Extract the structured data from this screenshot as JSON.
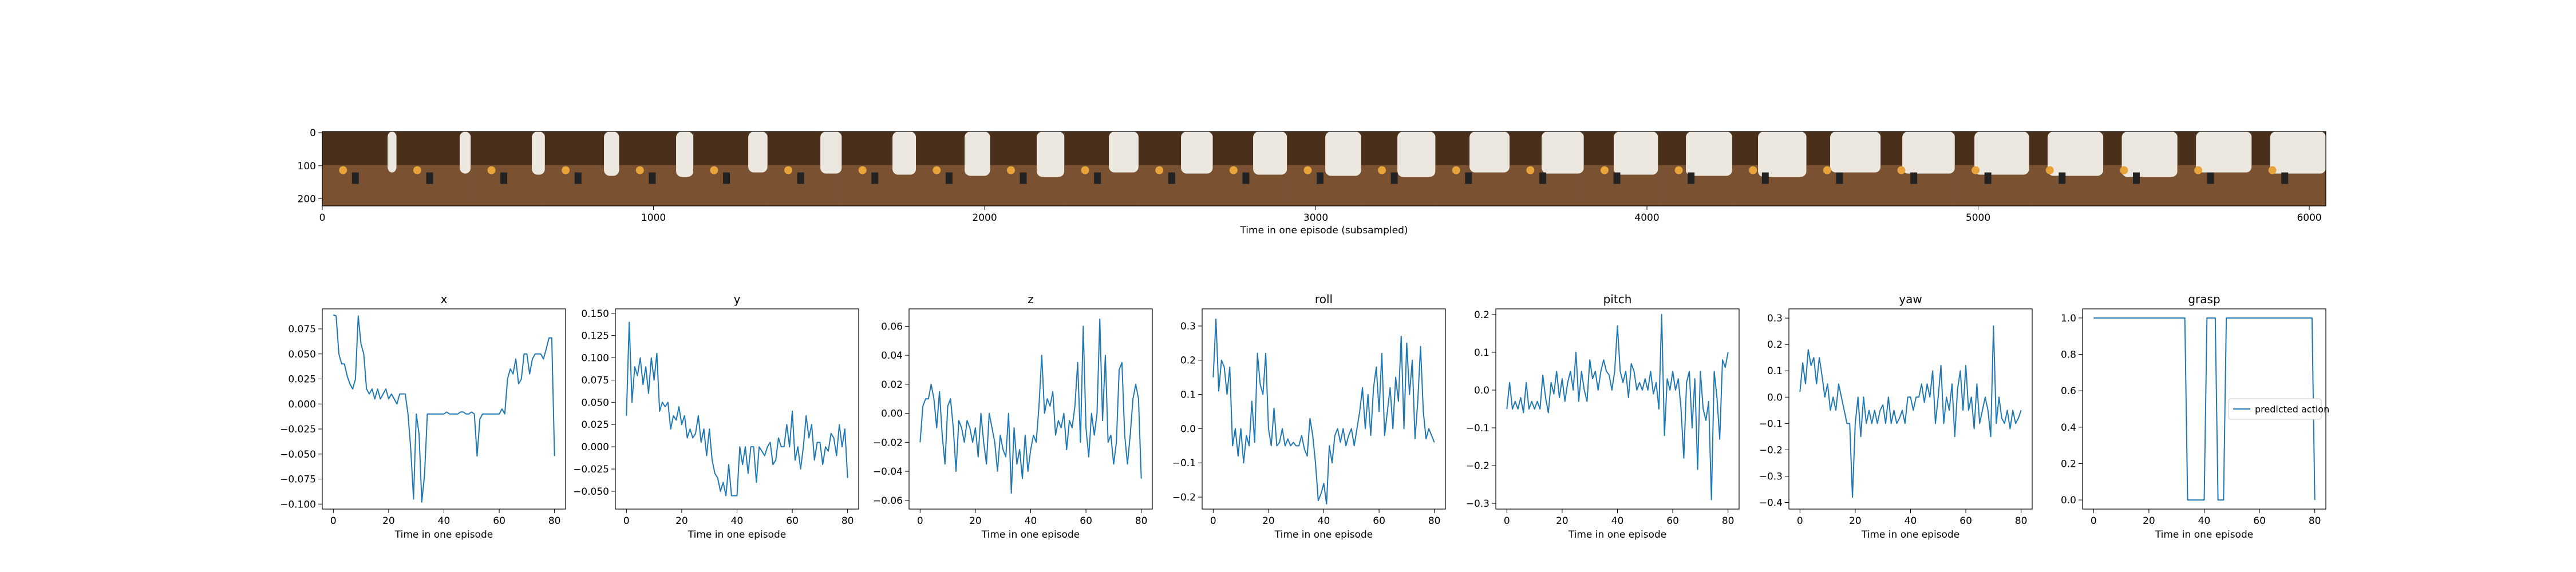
{
  "filmstrip": {
    "xlabel": "Time in one episode (subsampled)",
    "x_ticks": [
      "0",
      "1000",
      "2000",
      "3000",
      "4000",
      "5000",
      "6000"
    ],
    "y_ticks": [
      "0",
      "100",
      "200"
    ],
    "frame_count": 27,
    "colors": {
      "wood": "#7a5232",
      "wood_dark": "#4a2f1a",
      "arm": "#ece8e0",
      "accent": "#e8a33a"
    }
  },
  "line_color": "#1f77b4",
  "chart_data": [
    {
      "type": "line",
      "title": "x",
      "xlabel": "Time in one episode",
      "x_ticks": [
        "0",
        "20",
        "40",
        "60",
        "80"
      ],
      "y_ticks": [
        "−0.100",
        "−0.075",
        "−0.050",
        "−0.025",
        "0.000",
        "0.025",
        "0.050",
        "0.075"
      ],
      "xlim": [
        -4,
        84
      ],
      "ylim": [
        -0.105,
        0.095
      ],
      "ytick_values": [
        -0.1,
        -0.075,
        -0.05,
        -0.025,
        0.0,
        0.025,
        0.05,
        0.075
      ],
      "series": [
        {
          "values": [
            0.089,
            0.088,
            0.05,
            0.04,
            0.04,
            0.028,
            0.02,
            0.015,
            0.025,
            0.088,
            0.06,
            0.05,
            0.015,
            0.01,
            0.015,
            0.005,
            0.015,
            0.005,
            0.01,
            0.015,
            0.005,
            0.01,
            0.005,
            0.0,
            0.01,
            0.01,
            0.01,
            -0.01,
            -0.045,
            -0.095,
            -0.01,
            -0.03,
            -0.098,
            -0.07,
            -0.01,
            -0.01,
            -0.01,
            -0.01,
            -0.01,
            -0.01,
            -0.01,
            -0.008,
            -0.01,
            -0.01,
            -0.01,
            -0.01,
            -0.008,
            -0.008,
            -0.01,
            -0.01,
            -0.008,
            -0.01,
            -0.052,
            -0.015,
            -0.01,
            -0.01,
            -0.01,
            -0.01,
            -0.01,
            -0.01,
            -0.01,
            -0.005,
            -0.01,
            0.025,
            0.035,
            0.03,
            0.045,
            0.02,
            0.025,
            0.05,
            0.05,
            0.03,
            0.045,
            0.05,
            0.05,
            0.05,
            0.045,
            0.055,
            0.066,
            0.066,
            -0.052
          ]
        }
      ]
    },
    {
      "type": "line",
      "title": "y",
      "xlabel": "Time in one episode",
      "x_ticks": [
        "0",
        "20",
        "40",
        "60",
        "80"
      ],
      "y_ticks": [
        "−0.050",
        "−0.025",
        "0.000",
        "0.025",
        "0.050",
        "0.075",
        "0.100",
        "0.125",
        "0.150"
      ],
      "xlim": [
        -4,
        84
      ],
      "ylim": [
        -0.07,
        0.155
      ],
      "ytick_values": [
        -0.05,
        -0.025,
        0.0,
        0.025,
        0.05,
        0.075,
        0.1,
        0.125,
        0.15
      ],
      "series": [
        {
          "values": [
            0.035,
            0.14,
            0.05,
            0.09,
            0.08,
            0.1,
            0.07,
            0.09,
            0.06,
            0.1,
            0.075,
            0.105,
            0.04,
            0.05,
            0.045,
            0.05,
            0.02,
            0.035,
            0.03,
            0.045,
            0.025,
            0.035,
            0.01,
            0.02,
            0.01,
            0.015,
            0.035,
            0.005,
            0.02,
            -0.01,
            0.02,
            -0.015,
            -0.03,
            -0.035,
            -0.05,
            -0.04,
            -0.055,
            -0.02,
            -0.055,
            -0.055,
            -0.055,
            0.0,
            -0.02,
            0.0,
            -0.03,
            0.0,
            0.0,
            -0.04,
            0.0,
            -0.005,
            -0.01,
            0.0,
            0.005,
            -0.02,
            -0.015,
            0.01,
            0.0,
            0.0,
            0.025,
            0.0,
            0.04,
            -0.015,
            0.0,
            -0.025,
            0.0,
            0.035,
            0.01,
            0.025,
            -0.015,
            0.005,
            0.005,
            -0.02,
            0.0,
            -0.005,
            0.015,
            0.01,
            -0.01,
            0.025,
            0.0,
            0.02,
            -0.035
          ]
        }
      ]
    },
    {
      "type": "line",
      "title": "z",
      "xlabel": "Time in one episode",
      "x_ticks": [
        "0",
        "20",
        "40",
        "60",
        "80"
      ],
      "y_ticks": [
        "−0.06",
        "−0.04",
        "−0.02",
        "0.00",
        "0.02",
        "0.04",
        "0.06"
      ],
      "xlim": [
        -4,
        84
      ],
      "ylim": [
        -0.066,
        0.072
      ],
      "ytick_values": [
        -0.06,
        -0.04,
        -0.02,
        0.0,
        0.02,
        0.04,
        0.06
      ],
      "series": [
        {
          "values": [
            -0.02,
            0.005,
            0.01,
            0.01,
            0.02,
            0.01,
            -0.01,
            0.015,
            -0.015,
            -0.035,
            0.005,
            0.01,
            -0.01,
            -0.04,
            -0.005,
            -0.01,
            -0.02,
            -0.005,
            -0.01,
            -0.02,
            -0.01,
            -0.03,
            0.0,
            -0.02,
            -0.035,
            0.0,
            -0.01,
            -0.02,
            -0.04,
            -0.015,
            -0.025,
            -0.03,
            0.0,
            -0.055,
            -0.01,
            -0.035,
            -0.025,
            -0.045,
            -0.015,
            -0.04,
            -0.025,
            -0.015,
            -0.02,
            0.005,
            0.04,
            0.0,
            0.01,
            0.005,
            0.015,
            -0.015,
            -0.005,
            -0.01,
            0.0,
            -0.025,
            -0.005,
            -0.01,
            0.005,
            0.035,
            -0.02,
            0.06,
            -0.01,
            -0.03,
            0.0,
            -0.015,
            0.0,
            0.065,
            -0.005,
            0.04,
            -0.02,
            -0.015,
            -0.035,
            -0.02,
            0.03,
            0.035,
            -0.015,
            -0.035,
            -0.015,
            0.01,
            0.02,
            0.01,
            -0.045
          ]
        }
      ]
    },
    {
      "type": "line",
      "title": "roll",
      "xlabel": "Time in one episode",
      "x_ticks": [
        "0",
        "20",
        "40",
        "60",
        "80"
      ],
      "y_ticks": [
        "−0.2",
        "−0.1",
        "0.0",
        "0.1",
        "0.2",
        "0.3"
      ],
      "xlim": [
        -4,
        84
      ],
      "ylim": [
        -0.235,
        0.35
      ],
      "ytick_values": [
        -0.2,
        -0.1,
        0.0,
        0.1,
        0.2,
        0.3
      ],
      "series": [
        {
          "values": [
            0.15,
            0.32,
            0.11,
            0.2,
            0.18,
            0.1,
            0.18,
            -0.05,
            0.0,
            -0.08,
            0.0,
            -0.1,
            -0.02,
            -0.05,
            0.08,
            -0.04,
            0.22,
            0.13,
            0.1,
            0.22,
            0.0,
            -0.05,
            0.06,
            -0.05,
            -0.04,
            0.0,
            -0.05,
            -0.03,
            -0.05,
            -0.04,
            -0.05,
            -0.05,
            -0.02,
            -0.06,
            -0.08,
            0.03,
            -0.02,
            -0.1,
            -0.21,
            -0.19,
            -0.16,
            -0.22,
            -0.05,
            -0.1,
            -0.02,
            0.0,
            -0.04,
            0.0,
            -0.05,
            -0.02,
            0.0,
            -0.05,
            0.0,
            0.05,
            0.12,
            0.0,
            0.1,
            -0.02,
            0.12,
            0.18,
            0.05,
            0.22,
            -0.02,
            0.05,
            0.12,
            0.0,
            0.15,
            0.08,
            0.27,
            0.0,
            0.25,
            0.1,
            0.2,
            -0.03,
            0.08,
            0.24,
            0.05,
            -0.03,
            0.0,
            -0.02,
            -0.04
          ]
        }
      ]
    },
    {
      "type": "line",
      "title": "pitch",
      "xlabel": "Time in one episode",
      "x_ticks": [
        "0",
        "20",
        "40",
        "60",
        "80"
      ],
      "y_ticks": [
        "−0.3",
        "−0.2",
        "−0.1",
        "0.0",
        "0.1",
        "0.2"
      ],
      "xlim": [
        -4,
        84
      ],
      "ylim": [
        -0.315,
        0.215
      ],
      "ytick_values": [
        -0.3,
        -0.2,
        -0.1,
        0.0,
        0.1,
        0.2
      ],
      "series": [
        {
          "values": [
            -0.05,
            0.02,
            -0.05,
            -0.03,
            -0.05,
            -0.02,
            -0.06,
            0.02,
            -0.05,
            -0.03,
            -0.05,
            -0.03,
            -0.05,
            0.04,
            -0.02,
            -0.06,
            0.02,
            -0.01,
            0.05,
            -0.02,
            0.03,
            -0.03,
            0.02,
            0.05,
            0.0,
            0.1,
            -0.03,
            0.05,
            0.0,
            -0.03,
            0.08,
            0.03,
            0.05,
            0.0,
            0.05,
            0.08,
            0.05,
            0.04,
            0.0,
            0.05,
            0.17,
            0.05,
            0.02,
            0.05,
            -0.02,
            0.07,
            0.05,
            0.0,
            0.02,
            0.0,
            0.03,
            0.0,
            0.05,
            -0.01,
            0.02,
            -0.05,
            0.2,
            -0.12,
            0.03,
            0.0,
            0.05,
            0.0,
            0.03,
            -0.05,
            -0.18,
            0.02,
            0.05,
            -0.1,
            0.03,
            -0.21,
            0.05,
            -0.05,
            -0.08,
            -0.03,
            -0.29,
            0.05,
            -0.02,
            -0.13,
            0.08,
            0.06,
            0.1
          ]
        }
      ]
    },
    {
      "type": "line",
      "title": "yaw",
      "xlabel": "Time in one episode",
      "x_ticks": [
        "0",
        "20",
        "40",
        "60",
        "80"
      ],
      "y_ticks": [
        "−0.4",
        "−0.3",
        "−0.2",
        "−0.1",
        "0.0",
        "0.1",
        "0.2",
        "0.3"
      ],
      "xlim": [
        -4,
        84
      ],
      "ylim": [
        -0.425,
        0.335
      ],
      "ytick_values": [
        -0.4,
        -0.3,
        -0.2,
        -0.1,
        0.0,
        0.1,
        0.2,
        0.3
      ],
      "series": [
        {
          "values": [
            0.02,
            0.13,
            0.05,
            0.18,
            0.12,
            0.15,
            0.05,
            0.15,
            0.08,
            0.0,
            0.05,
            -0.05,
            0.0,
            -0.05,
            0.05,
            0.0,
            -0.05,
            -0.1,
            -0.1,
            -0.38,
            -0.1,
            0.0,
            -0.15,
            0.0,
            -0.1,
            -0.05,
            -0.1,
            -0.05,
            -0.1,
            -0.05,
            -0.03,
            -0.1,
            0.0,
            -0.1,
            -0.05,
            -0.1,
            -0.08,
            -0.05,
            -0.1,
            0.0,
            0.0,
            -0.05,
            0.0,
            0.0,
            0.05,
            -0.02,
            0.05,
            0.0,
            0.1,
            -0.1,
            0.0,
            0.12,
            -0.1,
            0.0,
            -0.05,
            0.05,
            -0.15,
            0.03,
            0.1,
            -0.05,
            0.12,
            -0.05,
            0.0,
            -0.12,
            0.05,
            -0.1,
            -0.05,
            0.0,
            -0.05,
            -0.15,
            0.27,
            -0.1,
            0.0,
            -0.08,
            -0.1,
            -0.05,
            -0.12,
            -0.05,
            -0.1,
            -0.08,
            -0.05
          ]
        }
      ]
    },
    {
      "type": "line",
      "title": "grasp",
      "xlabel": "Time in one episode",
      "x_ticks": [
        "0",
        "20",
        "40",
        "60",
        "80"
      ],
      "y_ticks": [
        "0.0",
        "0.2",
        "0.4",
        "0.6",
        "0.8",
        "1.0"
      ],
      "xlim": [
        -4,
        84
      ],
      "ylim": [
        -0.05,
        1.05
      ],
      "ytick_values": [
        0.0,
        0.2,
        0.4,
        0.6,
        0.8,
        1.0
      ],
      "legend": {
        "placement": "center-right",
        "entries": [
          "predicted action"
        ]
      },
      "series": [
        {
          "name": "predicted action",
          "values": [
            1,
            1,
            1,
            1,
            1,
            1,
            1,
            1,
            1,
            1,
            1,
            1,
            1,
            1,
            1,
            1,
            1,
            1,
            1,
            1,
            1,
            1,
            1,
            1,
            1,
            1,
            1,
            1,
            1,
            1,
            1,
            1,
            1,
            1,
            0,
            0,
            0,
            0,
            0,
            0,
            0,
            1,
            1,
            1,
            1,
            0,
            0,
            0,
            1,
            1,
            1,
            1,
            1,
            1,
            1,
            1,
            1,
            1,
            1,
            1,
            1,
            1,
            1,
            1,
            1,
            1,
            1,
            1,
            1,
            1,
            1,
            1,
            1,
            1,
            1,
            1,
            1,
            1,
            1,
            1,
            0
          ]
        }
      ]
    }
  ]
}
